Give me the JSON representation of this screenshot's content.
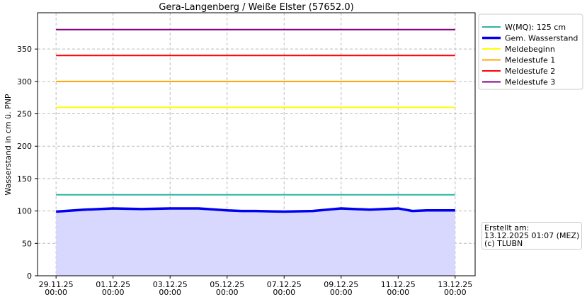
{
  "chart_data": {
    "type": "line",
    "title": "Gera-Langenberg / Weiße Elster (57652.0)",
    "y_label": "Wasserstand in cm ü. PNP",
    "annotation": "Erstellt am:\n13.12.2025 01:07 (MEZ)\n(c) TLUBN",
    "xlim": [
      -0.65,
      14.7
    ],
    "xticks": [
      {
        "value": 0,
        "label": "29.11.25\n00:00"
      },
      {
        "value": 2,
        "label": "01.12.25\n00:00"
      },
      {
        "value": 4,
        "label": "03.12.25\n00:00"
      },
      {
        "value": 6,
        "label": "05.12.25\n00:00"
      },
      {
        "value": 8,
        "label": "07.12.25\n00:00"
      },
      {
        "value": 10,
        "label": "09.12.25\n00:00"
      },
      {
        "value": 12,
        "label": "11.12.25\n00:00"
      },
      {
        "value": 14,
        "label": "13.12.25\n00:00"
      }
    ],
    "ylim": [
      0,
      406
    ],
    "yticks": [
      0,
      50,
      100,
      150,
      200,
      250,
      300,
      350
    ],
    "grid": true,
    "legend": "outside-right",
    "series": [
      {
        "name": "W(MQ): 125 cm",
        "color": "#2ab5a5",
        "width": 2,
        "x": [
          0,
          14
        ],
        "values": [
          125,
          125
        ]
      },
      {
        "name": "Gem. Wasserstand",
        "color": "#0000ee",
        "width": 3.5,
        "fill": "#d8d8ff",
        "x": [
          0,
          1,
          2,
          3,
          4,
          5,
          6,
          6.5,
          7,
          8,
          9,
          10,
          11,
          12,
          12.5,
          13,
          14
        ],
        "values": [
          99,
          102,
          104,
          103,
          104,
          104,
          101,
          100,
          100,
          99,
          100,
          104,
          102,
          104,
          100,
          101,
          101
        ]
      },
      {
        "name": "Meldebeginn",
        "color": "#ffff00",
        "width": 2,
        "x": [
          0,
          14
        ],
        "values": [
          260,
          260
        ]
      },
      {
        "name": "Meldestufe 1",
        "color": "#ffa500",
        "width": 2,
        "x": [
          0,
          14
        ],
        "values": [
          300,
          300
        ]
      },
      {
        "name": "Meldestufe 2",
        "color": "#ff0000",
        "width": 2,
        "x": [
          0,
          14
        ],
        "values": [
          340,
          340
        ]
      },
      {
        "name": "Meldestufe 3",
        "color": "#800080",
        "width": 2,
        "x": [
          0,
          14
        ],
        "values": [
          380,
          380
        ]
      }
    ]
  }
}
